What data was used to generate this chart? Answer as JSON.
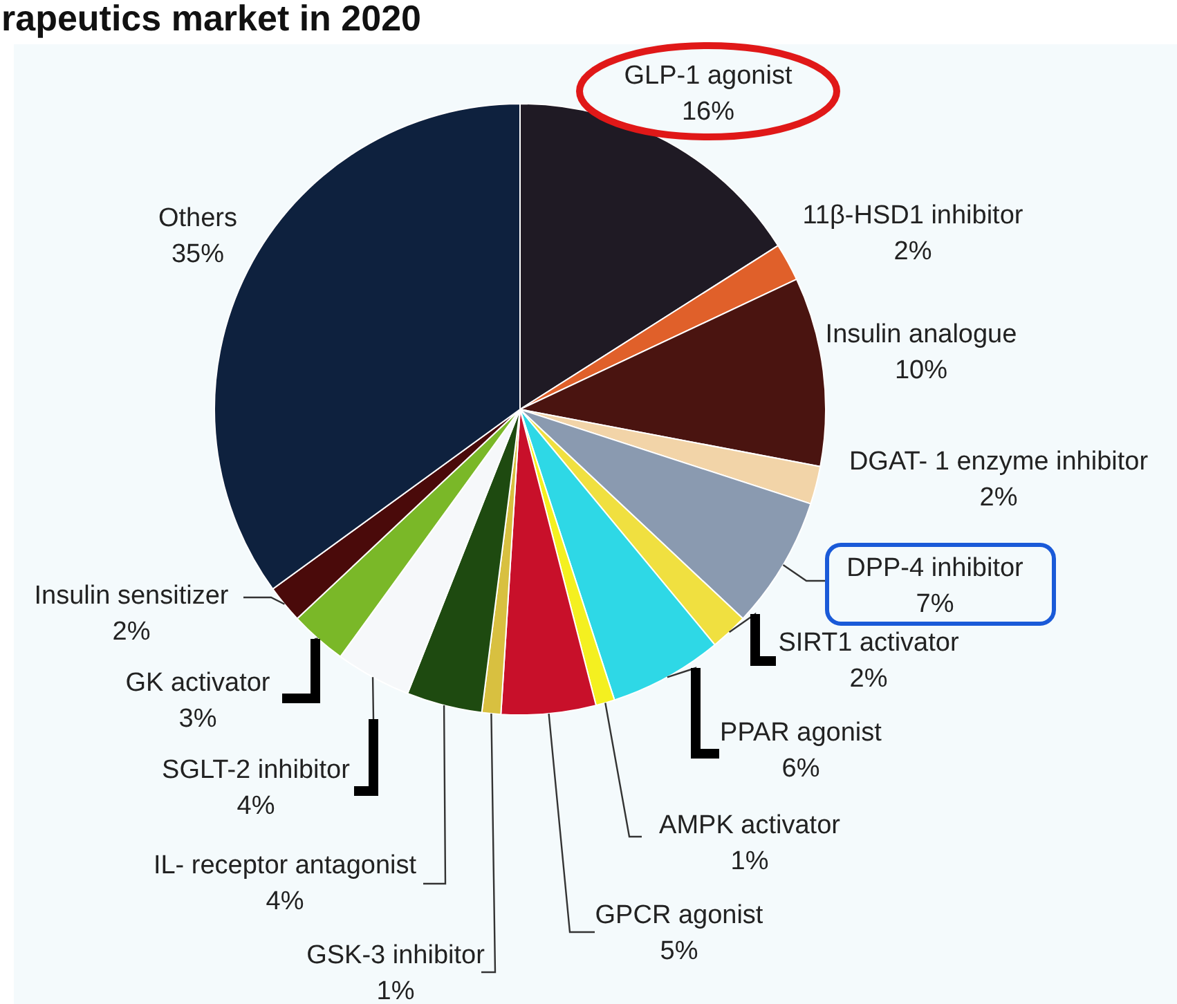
{
  "chart_data": {
    "type": "pie",
    "title": "rapeutics market in 2020",
    "categories": [
      "GLP-1 agonist",
      "11β-HSD1 inhibitor",
      "Insulin analogue",
      "DGAT- 1 enzyme inhibitor",
      "DPP-4 inhibitor",
      "SIRT1 activator",
      "PPAR agonist",
      "AMPK activator",
      "GPCR agonist",
      "GSK-3 inhibitor",
      "IL- receptor antagonist",
      "SGLT-2 inhibitor",
      "GK activator",
      "Insulin sensitizer",
      "Others"
    ],
    "values": [
      16,
      2,
      10,
      2,
      7,
      2,
      6,
      1,
      5,
      1,
      4,
      4,
      3,
      2,
      35
    ],
    "value_labels": [
      "16%",
      "2%",
      "10%",
      "2%",
      "7%",
      "2%",
      "6%",
      "1%",
      "5%",
      "1%",
      "4%",
      "4%",
      "3%",
      "2%",
      "35%"
    ],
    "colors": [
      "#1f1a24",
      "#e0602a",
      "#4a1410",
      "#f2d4a8",
      "#8a9ab0",
      "#f0e040",
      "#2ed8e6",
      "#f4f020",
      "#c8102a",
      "#d8c040",
      "#1e4a10",
      "#f6f8fa",
      "#7ab828",
      "#4a0a0a",
      "#0e213e"
    ]
  }
}
